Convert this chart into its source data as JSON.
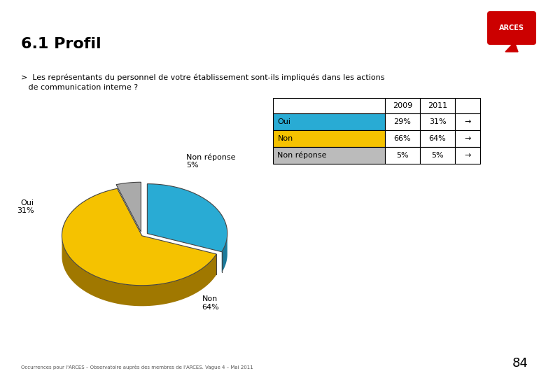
{
  "title": "6.1 Profil",
  "question_line1": ">  Les représentants du personnel de votre établissement sont-ils impliqués dans les actions",
  "question_line2": "   de communication interne ?",
  "pie_labels": [
    "Oui",
    "Non",
    "Non\nréponse"
  ],
  "pie_label_names": [
    "Oui",
    "Non",
    "Non réponse"
  ],
  "pie_values": [
    31,
    64,
    5
  ],
  "pie_colors": [
    "#29ABD4",
    "#F5C200",
    "#AAAAAA"
  ],
  "pie_dark_colors": [
    "#1A7A9A",
    "#A07800",
    "#777777"
  ],
  "pie_explode_oui": 0.08,
  "pie_explode_nonrep": 0.08,
  "table_headers": [
    "",
    "2009",
    "2011",
    ""
  ],
  "table_rows": [
    {
      "label": "Oui",
      "color": "#29ABD4",
      "val2009": "29%",
      "val2011": "31%",
      "arrow": "→"
    },
    {
      "label": "Non",
      "color": "#F5C200",
      "val2009": "66%",
      "val2011": "64%",
      "arrow": "→"
    },
    {
      "label": "Non réponse",
      "color": "#BBBBBB",
      "val2009": "5%",
      "val2011": "5%",
      "arrow": "→"
    }
  ],
  "footer_text": "Occurrences pour l'ARCES – Observatoire auprès des membres de l'ARCES. Vague 4 – Mai 2011",
  "page_number": "84",
  "bg": "#FFFFFF",
  "sidebar_colors": [
    "#F5C200",
    "#E8A000",
    "#C8C8C8"
  ],
  "arces_color": "#CC0000"
}
